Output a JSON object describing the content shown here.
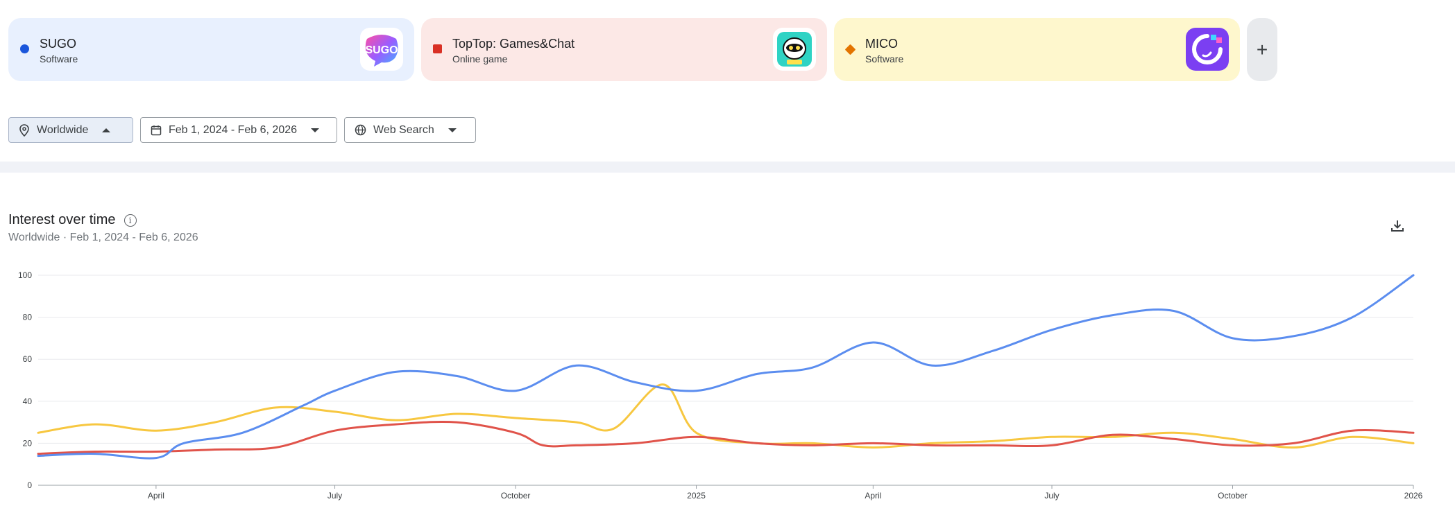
{
  "terms": [
    {
      "name": "SUGO",
      "type": "Software",
      "color": "#1a56db",
      "marker": "circle",
      "bg": "#e8f0fe",
      "logo": "sugo-logo"
    },
    {
      "name": "TopTop: Games&Chat",
      "type": "Online game",
      "color": "#d93025",
      "marker": "square",
      "bg": "#fce8e6",
      "logo": "toptop-logo"
    },
    {
      "name": "MICO",
      "type": "Software",
      "color": "#e37400",
      "marker": "diamond",
      "bg": "#fef7cd",
      "logo": "mico-logo"
    }
  ],
  "add_label": "+",
  "filters": {
    "location": "Worldwide",
    "date_range": "Feb 1, 2024 - Feb 6, 2026",
    "property": "Web Search"
  },
  "chart_section": {
    "title": "Interest over time",
    "subtitle": "Worldwide · Feb 1, 2024 - Feb 6, 2026"
  },
  "chart_data": {
    "type": "line",
    "ylim": [
      0,
      100
    ],
    "yticks": [
      0,
      20,
      40,
      60,
      80,
      100
    ],
    "xlim": [
      "2024-02-01",
      "2026-01-01"
    ],
    "xticks": [
      {
        "date": "2024-04-01",
        "label": "April"
      },
      {
        "date": "2024-07-01",
        "label": "July"
      },
      {
        "date": "2024-10-01",
        "label": "October"
      },
      {
        "date": "2025-01-01",
        "label": "2025"
      },
      {
        "date": "2025-04-01",
        "label": "April"
      },
      {
        "date": "2025-07-01",
        "label": "July"
      },
      {
        "date": "2025-10-01",
        "label": "October"
      },
      {
        "date": "2026-01-01",
        "label": "2026"
      }
    ],
    "grid": true,
    "legend": "top",
    "series": [
      {
        "name": "SUGO",
        "color": "#5b8def",
        "points": [
          [
            "2024-02-01",
            14
          ],
          [
            "2024-03-01",
            15
          ],
          [
            "2024-04-01",
            13
          ],
          [
            "2024-04-15",
            20
          ],
          [
            "2024-05-15",
            25
          ],
          [
            "2024-06-15",
            38
          ],
          [
            "2024-07-01",
            45
          ],
          [
            "2024-08-01",
            54
          ],
          [
            "2024-09-01",
            52
          ],
          [
            "2024-10-01",
            45
          ],
          [
            "2024-11-01",
            57
          ],
          [
            "2024-12-01",
            49
          ],
          [
            "2025-01-01",
            45
          ],
          [
            "2025-02-01",
            53
          ],
          [
            "2025-03-01",
            56
          ],
          [
            "2025-04-01",
            68
          ],
          [
            "2025-05-01",
            57
          ],
          [
            "2025-06-01",
            64
          ],
          [
            "2025-07-01",
            74
          ],
          [
            "2025-08-01",
            81
          ],
          [
            "2025-09-01",
            83
          ],
          [
            "2025-10-01",
            70
          ],
          [
            "2025-11-01",
            71
          ],
          [
            "2025-12-01",
            80
          ],
          [
            "2026-01-01",
            100
          ]
        ]
      },
      {
        "name": "TopTop: Games&Chat",
        "color": "#e0534a",
        "points": [
          [
            "2024-02-01",
            15
          ],
          [
            "2024-03-01",
            16
          ],
          [
            "2024-04-01",
            16
          ],
          [
            "2024-05-01",
            17
          ],
          [
            "2024-06-01",
            18
          ],
          [
            "2024-07-01",
            26
          ],
          [
            "2024-08-01",
            29
          ],
          [
            "2024-09-01",
            30
          ],
          [
            "2024-10-01",
            25
          ],
          [
            "2024-10-15",
            19
          ],
          [
            "2024-11-01",
            19
          ],
          [
            "2024-12-01",
            20
          ],
          [
            "2025-01-01",
            23
          ],
          [
            "2025-02-01",
            20
          ],
          [
            "2025-03-01",
            19
          ],
          [
            "2025-04-01",
            20
          ],
          [
            "2025-05-01",
            19
          ],
          [
            "2025-06-01",
            19
          ],
          [
            "2025-07-01",
            19
          ],
          [
            "2025-08-01",
            24
          ],
          [
            "2025-09-01",
            22
          ],
          [
            "2025-10-01",
            19
          ],
          [
            "2025-11-01",
            20
          ],
          [
            "2025-12-01",
            26
          ],
          [
            "2026-01-01",
            25
          ]
        ]
      },
      {
        "name": "MICO",
        "color": "#f7c740",
        "points": [
          [
            "2024-02-01",
            25
          ],
          [
            "2024-03-01",
            29
          ],
          [
            "2024-04-01",
            26
          ],
          [
            "2024-05-01",
            30
          ],
          [
            "2024-06-01",
            37
          ],
          [
            "2024-07-01",
            35
          ],
          [
            "2024-08-01",
            31
          ],
          [
            "2024-09-01",
            34
          ],
          [
            "2024-10-01",
            32
          ],
          [
            "2024-11-01",
            30
          ],
          [
            "2024-11-20",
            27
          ],
          [
            "2024-12-15",
            48
          ],
          [
            "2025-01-01",
            25
          ],
          [
            "2025-02-01",
            20
          ],
          [
            "2025-03-01",
            20
          ],
          [
            "2025-04-01",
            18
          ],
          [
            "2025-05-01",
            20
          ],
          [
            "2025-06-01",
            21
          ],
          [
            "2025-07-01",
            23
          ],
          [
            "2025-08-01",
            23
          ],
          [
            "2025-09-01",
            25
          ],
          [
            "2025-10-01",
            22
          ],
          [
            "2025-11-01",
            18
          ],
          [
            "2025-12-01",
            23
          ],
          [
            "2026-01-01",
            20
          ]
        ]
      }
    ]
  }
}
